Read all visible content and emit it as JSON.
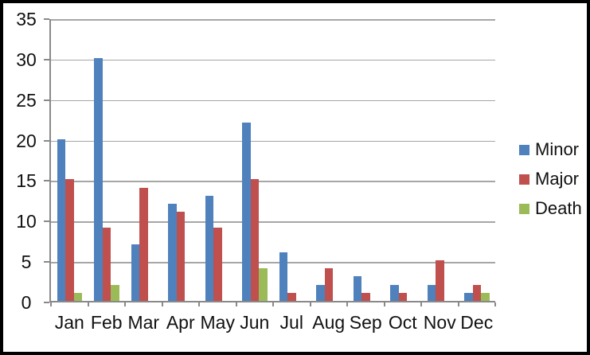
{
  "chart_data": {
    "type": "bar",
    "title": "",
    "categories": [
      "Jan",
      "Feb",
      "Mar",
      "Apr",
      "May",
      "Jun",
      "Jul",
      "Aug",
      "Sep",
      "Oct",
      "Nov",
      "Dec"
    ],
    "series": [
      {
        "name": "Minor",
        "color": "#4F81BD",
        "values": [
          20,
          30,
          7,
          12,
          13,
          22,
          6,
          2,
          3,
          2,
          2,
          1
        ]
      },
      {
        "name": "Major",
        "color": "#C0504D",
        "values": [
          15,
          9,
          14,
          11,
          9,
          15,
          1,
          4,
          1,
          1,
          5,
          2
        ]
      },
      {
        "name": "Death",
        "color": "#9BBB59",
        "values": [
          1,
          2,
          0,
          0,
          0,
          4,
          0,
          0,
          0,
          0,
          0,
          1
        ]
      }
    ],
    "ylim": [
      0,
      35
    ],
    "yticks": [
      0,
      5,
      10,
      15,
      20,
      25,
      30,
      35
    ],
    "grid": true,
    "legend_position": "right"
  },
  "colors": {
    "background": "#FFFFFF",
    "frame_border": "#000000",
    "gridline": "#A6A6A6",
    "axis": "#898989",
    "text": "#111111"
  }
}
